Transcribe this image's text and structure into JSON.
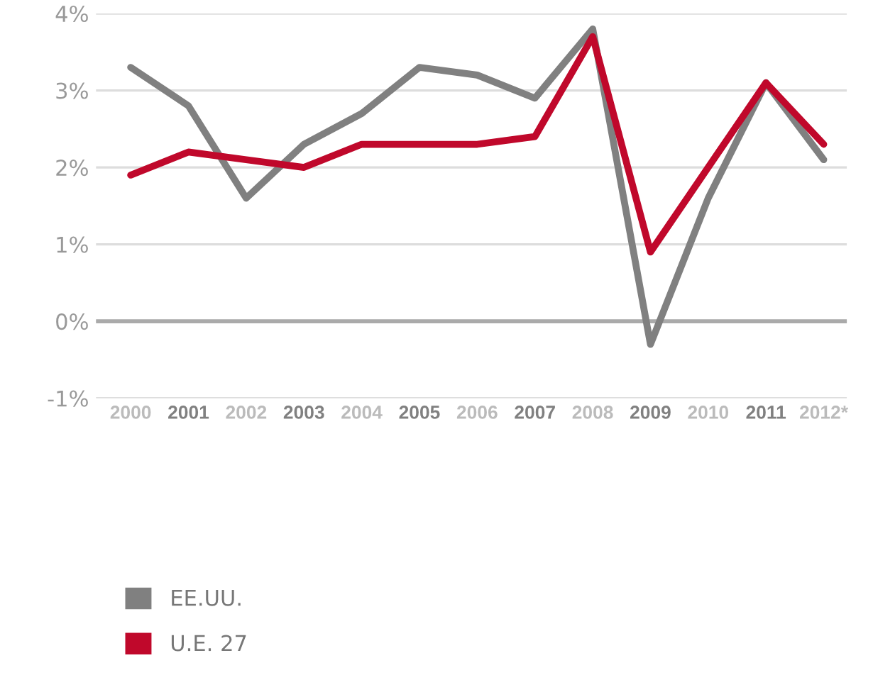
{
  "chart_data": {
    "type": "line",
    "categories": [
      "2000",
      "2001",
      "2002",
      "2003",
      "2004",
      "2005",
      "2006",
      "2007",
      "2008",
      "2009",
      "2010",
      "2011",
      "2012*"
    ],
    "series": [
      {
        "name": "EE.UU.",
        "color": "#808080",
        "values": [
          3.3,
          2.8,
          1.6,
          2.3,
          2.7,
          3.3,
          3.2,
          2.9,
          3.8,
          -0.3,
          1.6,
          3.1,
          2.1
        ]
      },
      {
        "name": "U.E. 27",
        "color": "#c0082b",
        "values": [
          1.9,
          2.2,
          2.1,
          2.0,
          2.3,
          2.3,
          2.3,
          2.4,
          3.7,
          0.9,
          2.0,
          3.1,
          2.3
        ]
      }
    ],
    "ylim": [
      -1,
      4
    ],
    "yticks": [
      {
        "value": -1,
        "label": "-1%"
      },
      {
        "value": 0,
        "label": "0%"
      },
      {
        "value": 1,
        "label": "1%"
      },
      {
        "value": 2,
        "label": "2%"
      },
      {
        "value": 3,
        "label": "3%"
      },
      {
        "value": 4,
        "label": "4%"
      }
    ],
    "ref_lines": [
      {
        "axis": "y",
        "value": 0,
        "color": "#aaaaaa"
      }
    ],
    "grid": "y",
    "legend": "bottom left",
    "marker": "none",
    "line_style": "solid"
  }
}
